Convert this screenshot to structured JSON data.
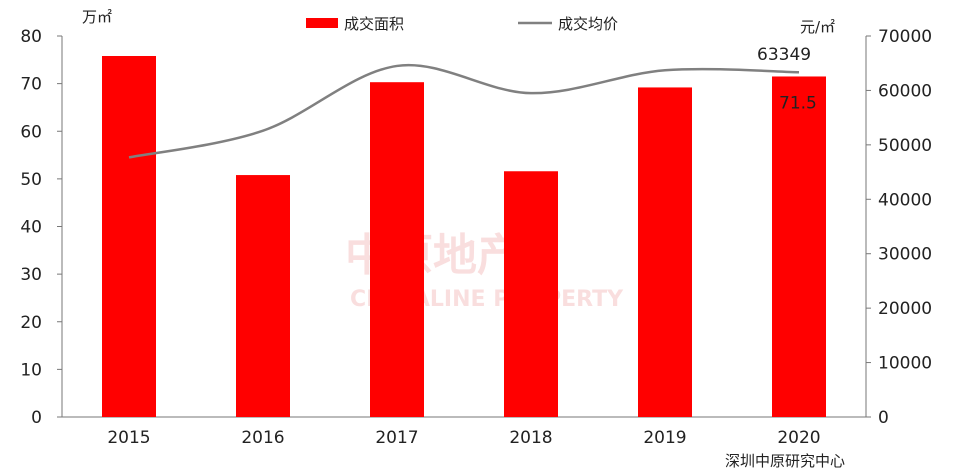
{
  "chart_data": {
    "type": "bar",
    "categories": [
      "2015",
      "2016",
      "2017",
      "2018",
      "2019",
      "2020"
    ],
    "series": [
      {
        "name": "成交面积",
        "type": "bar",
        "axis": "left",
        "color": "#ff0000",
        "values": [
          75.8,
          50.8,
          70.3,
          51.6,
          69.2,
          71.5
        ]
      },
      {
        "name": "成交均价",
        "type": "line",
        "axis": "right",
        "color": "#808080",
        "values": [
          47700,
          52600,
          64500,
          59500,
          63700,
          63349
        ]
      }
    ],
    "y_left": {
      "unit": "万㎡",
      "min": 0,
      "max": 80,
      "step": 10,
      "ticks": [
        "0",
        "10",
        "20",
        "30",
        "40",
        "50",
        "60",
        "70",
        "80"
      ]
    },
    "y_right": {
      "unit": "元/㎡",
      "min": 0,
      "max": 70000,
      "step": 10000,
      "ticks": [
        "0",
        "10000",
        "20000",
        "30000",
        "40000",
        "50000",
        "60000",
        "70000"
      ]
    },
    "data_labels": {
      "bar_2020": "71.5",
      "line_2020": "63349"
    },
    "legend": {
      "position": "top",
      "items": [
        "成交面积",
        "成交均价"
      ]
    },
    "grid": false,
    "source": "深圳中原研究中心",
    "watermark": {
      "cn": "中原地产",
      "en": "CENTALINE PROPERTY"
    }
  }
}
